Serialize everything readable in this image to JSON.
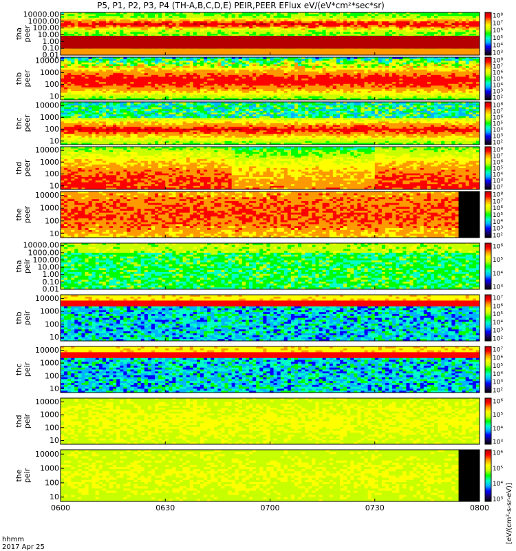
{
  "title": "P5, P1, P2, P3, P4 (TH-A,B,C,D,E) PEIR,PEER EFlux eV/(eV*cm²*sec*sr)",
  "footer": {
    "time_label": "hhmm",
    "date": "2017 Apr 25"
  },
  "colorbar_units": "[eV/(cm²-s-sr-eV)]",
  "colors": {
    "colormap": [
      "#000000",
      "#1a0066",
      "#0000ff",
      "#00b4ff",
      "#00ffc8",
      "#00ff00",
      "#c8ff00",
      "#ffff00",
      "#ff9900",
      "#ff0000",
      "#b40000"
    ],
    "fill": "#ff0000",
    "nodata": "#000000"
  },
  "chart_data": {
    "type": "heatmap",
    "x_ticks": [
      "0600",
      "0630",
      "0700",
      "0730",
      "0800"
    ],
    "xlim": [
      "0600",
      "0800"
    ],
    "panels": [
      {
        "name": "tha peer",
        "line1": "tha",
        "line2": "peer",
        "y_ticks": [
          "10000.00",
          "1000.00",
          "100.00",
          "10.00",
          "1.00",
          "0.10",
          "0.01"
        ],
        "ylim": [
          0.01,
          20000
        ],
        "yscale": "log",
        "cbar_ticks": [
          "10⁸",
          "10⁷",
          "10⁶",
          "10⁵",
          "10⁴",
          "10³"
        ],
        "pattern": "lowfill"
      },
      {
        "name": "thb peer",
        "line1": "thb",
        "line2": "peer",
        "y_ticks": [
          "10000",
          "1000",
          "100",
          "10"
        ],
        "ylim": [
          5,
          20000
        ],
        "yscale": "log",
        "cbar_ticks": [
          "10⁸",
          "10⁷",
          "10⁶",
          "10⁵",
          "10⁴",
          "10³",
          "10²"
        ],
        "pattern": "peer"
      },
      {
        "name": "thc peer",
        "line1": "thc",
        "line2": "peer",
        "y_ticks": [
          "10000",
          "1000",
          "100",
          "10"
        ],
        "ylim": [
          5,
          20000
        ],
        "yscale": "log",
        "cbar_ticks": [
          "10⁸",
          "10⁷",
          "10⁶",
          "10⁵",
          "10⁴",
          "10³",
          "10²"
        ],
        "pattern": "peer_noisy"
      },
      {
        "name": "thd peer",
        "line1": "thd",
        "line2": "peer",
        "y_ticks": [
          "10000",
          "1000",
          "100",
          "10"
        ],
        "ylim": [
          5,
          20000
        ],
        "yscale": "log",
        "cbar_ticks": [
          "10⁸",
          "10⁷",
          "10⁶",
          "10⁵",
          "10⁴",
          "10³",
          "10²"
        ],
        "pattern": "peer_hot"
      },
      {
        "name": "the peer",
        "line1": "the",
        "line2": "peer",
        "y_ticks": [
          "10000",
          "1000",
          "100",
          "10"
        ],
        "ylim": [
          5,
          20000
        ],
        "yscale": "log",
        "cbar_ticks": [
          "10⁸",
          "10⁷",
          "10⁶",
          "10⁵",
          "10⁴",
          "10³",
          "10²"
        ],
        "pattern": "peer_hot_end"
      },
      {
        "name": "tha peir",
        "line1": "tha",
        "line2": "peir",
        "y_ticks": [
          "10000.00",
          "1000.00",
          "100.00",
          "10.00",
          "1.00",
          "0.10",
          "0.01"
        ],
        "ylim": [
          0.01,
          20000
        ],
        "yscale": "log",
        "cbar_ticks": [
          "10⁶",
          "10⁵",
          "10⁴",
          "10³"
        ],
        "pattern": "peir_wide"
      },
      {
        "name": "thb peir",
        "line1": "thb",
        "line2": "peir",
        "y_ticks": [
          "10000",
          "1000",
          "100",
          "10"
        ],
        "ylim": [
          5,
          20000
        ],
        "yscale": "log",
        "cbar_ticks": [
          "10⁷",
          "10⁶",
          "10⁵",
          "10⁴",
          "10³",
          "10²"
        ],
        "pattern": "peir_band"
      },
      {
        "name": "thc peir",
        "line1": "thc",
        "line2": "peir",
        "y_ticks": [
          "10000",
          "1000",
          "100",
          "10"
        ],
        "ylim": [
          5,
          20000
        ],
        "yscale": "log",
        "cbar_ticks": [
          "10⁷",
          "10⁶",
          "10⁵",
          "10⁴",
          "10³",
          "10²"
        ],
        "pattern": "peir_band"
      },
      {
        "name": "thd peir",
        "line1": "thd",
        "line2": "peir",
        "y_ticks": [
          "10000",
          "1000",
          "100",
          "10"
        ],
        "ylim": [
          5,
          20000
        ],
        "yscale": "log",
        "cbar_ticks": [
          "10⁶",
          "10⁵",
          "10⁴",
          "10³"
        ],
        "pattern": "peir_smooth"
      },
      {
        "name": "the peir",
        "line1": "the",
        "line2": "peir",
        "y_ticks": [
          "10000",
          "1000",
          "100",
          "10"
        ],
        "ylim": [
          5,
          20000
        ],
        "yscale": "log",
        "cbar_ticks": [
          "10⁶",
          "10⁵",
          "10⁴",
          "10³"
        ],
        "pattern": "peir_smooth_end"
      }
    ]
  }
}
